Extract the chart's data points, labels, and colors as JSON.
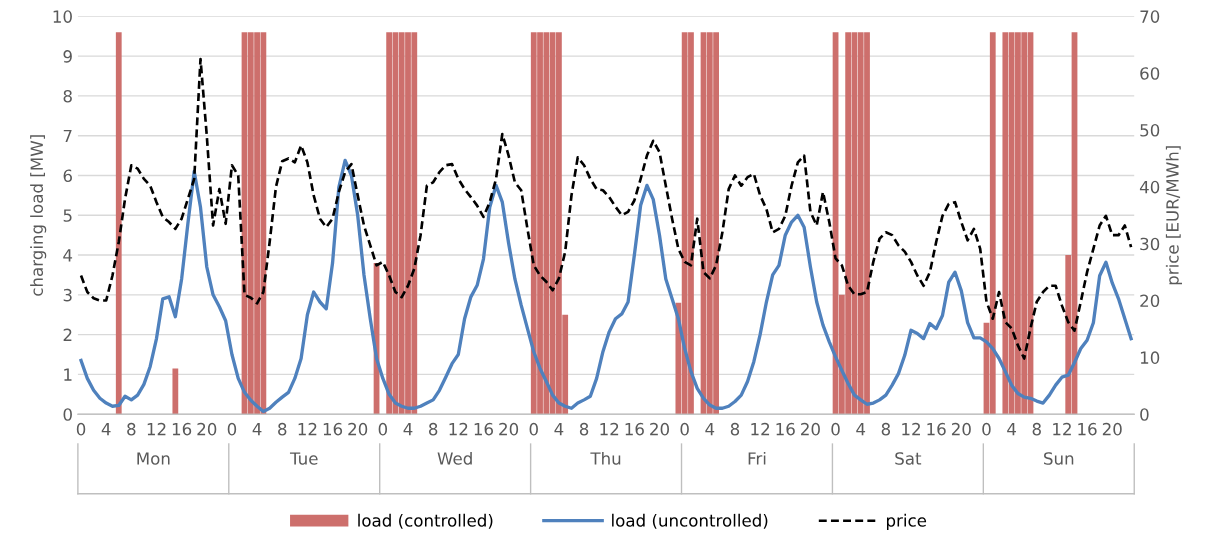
{
  "chart_data": {
    "type": "bar",
    "ylabel": "charging load [MW]",
    "y2label": "price [EUR/MWh]",
    "categories": [
      "0",
      null,
      null,
      null,
      "4",
      null,
      null,
      null,
      "8",
      null,
      null,
      null,
      "12",
      null,
      null,
      null,
      "16",
      null,
      null,
      null,
      "20",
      null,
      null,
      null,
      "0",
      null,
      null,
      null,
      "4",
      null,
      null,
      null,
      "8",
      null,
      null,
      null,
      "12",
      null,
      null,
      null,
      "16",
      null,
      null,
      null,
      "20",
      null,
      null,
      null,
      "0",
      null,
      null,
      null,
      "4",
      null,
      null,
      null,
      "8",
      null,
      null,
      null,
      "12",
      null,
      null,
      null,
      "16",
      null,
      null,
      null,
      "20",
      null,
      null,
      null,
      "0",
      null,
      null,
      null,
      "4",
      null,
      null,
      null,
      "8",
      null,
      null,
      null,
      "12",
      null,
      null,
      null,
      "16",
      null,
      null,
      null,
      "20",
      null,
      null,
      null,
      "0",
      null,
      null,
      null,
      "4",
      null,
      null,
      null,
      "8",
      null,
      null,
      null,
      "12",
      null,
      null,
      null,
      "16",
      null,
      null,
      null,
      "20",
      null,
      null,
      null,
      "0",
      null,
      null,
      null,
      "4",
      null,
      null,
      null,
      "8",
      null,
      null,
      null,
      "12",
      null,
      null,
      null,
      "16",
      null,
      null,
      null,
      "20",
      null,
      null,
      null,
      "0",
      null,
      null,
      null,
      "4",
      null,
      null,
      null,
      "8",
      null,
      null,
      null,
      "12",
      null,
      null,
      null,
      "16",
      null,
      null,
      null,
      "20",
      null,
      null,
      null
    ],
    "annotations": [
      "Mon",
      "Tue",
      "Wed",
      "Thu",
      "Fri",
      "Sat",
      "Sun"
    ],
    "series": [
      {
        "name": "load (controlled)",
        "color": "#cd6f6c",
        "values": [
          0,
          0,
          0,
          0,
          0,
          0,
          9.6,
          0,
          0,
          0,
          0,
          0,
          0,
          0,
          0,
          1.15,
          0,
          0,
          0,
          0,
          0,
          0,
          0,
          0,
          0,
          0,
          9.6,
          9.6,
          9.6,
          9.6,
          0,
          0,
          0,
          0,
          0,
          0,
          0,
          0,
          0,
          0,
          0,
          0,
          0,
          0,
          0,
          0,
          0,
          3.8,
          0,
          9.6,
          9.6,
          9.6,
          9.6,
          9.6,
          0,
          0,
          0,
          0,
          0,
          0,
          0,
          0,
          0,
          0,
          0,
          0,
          0,
          0,
          0,
          0,
          0,
          0,
          9.6,
          9.6,
          9.6,
          9.6,
          9.6,
          2.5,
          0,
          0,
          0,
          0,
          0,
          0,
          0,
          0,
          0,
          0,
          0,
          0,
          0,
          0,
          0,
          0,
          0,
          2.8,
          9.6,
          9.6,
          0,
          9.6,
          9.6,
          9.6,
          0,
          0,
          0,
          0,
          0,
          0,
          0,
          0,
          0,
          0,
          0,
          0,
          0,
          0,
          0,
          0,
          0,
          0,
          9.6,
          3.0,
          9.6,
          9.6,
          9.6,
          9.6,
          0,
          0,
          0,
          0,
          0,
          0,
          0,
          0,
          0,
          0,
          0,
          0,
          0,
          0,
          0,
          0,
          0,
          0,
          2.3,
          9.6,
          0,
          9.6,
          9.6,
          9.6,
          9.6,
          9.6,
          0,
          0,
          0,
          0,
          0,
          4.0,
          9.6,
          0,
          0,
          0,
          0,
          0,
          0,
          0,
          0,
          0
        ]
      },
      {
        "name": "load (uncontrolled)",
        "type": "line",
        "color": "#4f81bd",
        "line_style": "solid",
        "values": [
          1.35,
          0.9,
          0.6,
          0.4,
          0.28,
          0.2,
          0.22,
          0.45,
          0.36,
          0.48,
          0.75,
          1.2,
          1.9,
          2.9,
          2.95,
          2.45,
          3.4,
          4.8,
          6.1,
          5.2,
          3.7,
          3.0,
          2.7,
          2.35,
          1.5,
          0.9,
          0.55,
          0.35,
          0.2,
          0.07,
          0.15,
          0.3,
          0.43,
          0.55,
          0.9,
          1.4,
          2.5,
          3.07,
          2.82,
          2.65,
          3.8,
          5.7,
          6.38,
          6.0,
          5.0,
          3.5,
          2.4,
          1.4,
          0.9,
          0.5,
          0.28,
          0.2,
          0.15,
          0.15,
          0.2,
          0.28,
          0.36,
          0.6,
          0.93,
          1.27,
          1.5,
          2.4,
          2.95,
          3.24,
          3.9,
          5.2,
          5.75,
          5.33,
          4.3,
          3.4,
          2.74,
          2.15,
          1.57,
          1.15,
          0.82,
          0.48,
          0.28,
          0.2,
          0.15,
          0.28,
          0.36,
          0.45,
          0.9,
          1.57,
          2.07,
          2.4,
          2.52,
          2.82,
          4.0,
          5.25,
          5.75,
          5.4,
          4.5,
          3.4,
          2.9,
          2.4,
          1.65,
          1.07,
          0.65,
          0.4,
          0.23,
          0.15,
          0.15,
          0.2,
          0.32,
          0.48,
          0.82,
          1.32,
          2.0,
          2.82,
          3.5,
          3.74,
          4.5,
          4.83,
          5.0,
          4.7,
          3.7,
          2.82,
          2.24,
          1.82,
          1.44,
          1.1,
          0.77,
          0.48,
          0.36,
          0.25,
          0.28,
          0.36,
          0.48,
          0.73,
          1.02,
          1.48,
          2.11,
          2.03,
          1.9,
          2.28,
          2.15,
          2.48,
          3.32,
          3.57,
          3.1,
          2.3,
          1.92,
          1.92,
          1.82,
          1.65,
          1.4,
          1.07,
          0.73,
          0.52,
          0.43,
          0.4,
          0.33,
          0.28,
          0.48,
          0.73,
          0.93,
          0.98,
          1.3,
          1.65,
          1.86,
          2.3,
          3.48,
          3.82,
          3.3,
          2.9,
          2.4,
          1.9
        ]
      },
      {
        "name": "price",
        "type": "line",
        "axis": "y2",
        "color": "#000000",
        "line_style": "dashed",
        "values": [
          24.4,
          21.5,
          20.4,
          20.0,
          20.0,
          24.4,
          30.3,
          37.9,
          43.8,
          43.2,
          41.4,
          40.2,
          37.3,
          34.7,
          33.8,
          32.6,
          34.4,
          37.9,
          41.4,
          62.5,
          49.0,
          33.2,
          39.6,
          33.5,
          43.8,
          42.0,
          21.0,
          20.5,
          19.5,
          21.5,
          30.3,
          40.0,
          44.5,
          45.0,
          44.3,
          47.3,
          44.3,
          38.5,
          34.4,
          32.9,
          34.4,
          39.1,
          42.6,
          44.0,
          38.5,
          33.2,
          29.7,
          26.2,
          26.8,
          24.4,
          21.5,
          20.6,
          22.6,
          25.6,
          31.5,
          40.2,
          40.8,
          42.6,
          43.8,
          44.0,
          41.4,
          39.6,
          38.2,
          36.7,
          34.7,
          37.3,
          41.4,
          49.3,
          45.5,
          40.8,
          39.4,
          32.6,
          26.2,
          24.4,
          23.3,
          21.8,
          23.9,
          28.6,
          38.5,
          45.2,
          43.8,
          41.4,
          39.6,
          39.4,
          38.2,
          36.5,
          35.0,
          35.6,
          37.6,
          41.4,
          45.5,
          48.1,
          46.1,
          40.2,
          34.4,
          29.1,
          26.8,
          26.2,
          34.4,
          25.0,
          23.9,
          26.2,
          32.0,
          39.6,
          42.0,
          40.2,
          41.7,
          42.3,
          38.5,
          36.1,
          32.0,
          32.6,
          34.9,
          40.2,
          44.3,
          45.5,
          35.6,
          33.2,
          39.1,
          33.8,
          27.4,
          26.2,
          22.6,
          21.1,
          21.1,
          21.5,
          26.8,
          30.9,
          32.0,
          31.5,
          29.7,
          28.6,
          26.8,
          24.4,
          22.6,
          25.0,
          30.3,
          34.9,
          37.0,
          37.3,
          33.8,
          30.6,
          32.6,
          29.1,
          19.8,
          16.8,
          21.5,
          16.2,
          15.1,
          12.1,
          9.8,
          15.1,
          19.8,
          21.5,
          22.6,
          22.6,
          19.1,
          16.2,
          14.7,
          19.8,
          25.0,
          29.1,
          33.2,
          34.9,
          31.5,
          31.5,
          33.2,
          29.4
        ]
      }
    ],
    "ylim": [
      0,
      10
    ],
    "yticks": [
      0,
      1,
      2,
      3,
      4,
      5,
      6,
      7,
      8,
      9,
      10
    ],
    "y2lim": [
      0,
      70
    ],
    "y2ticks": [
      0,
      10,
      20,
      30,
      40,
      50,
      60,
      70
    ],
    "grid": "y",
    "legend": "bottom"
  }
}
